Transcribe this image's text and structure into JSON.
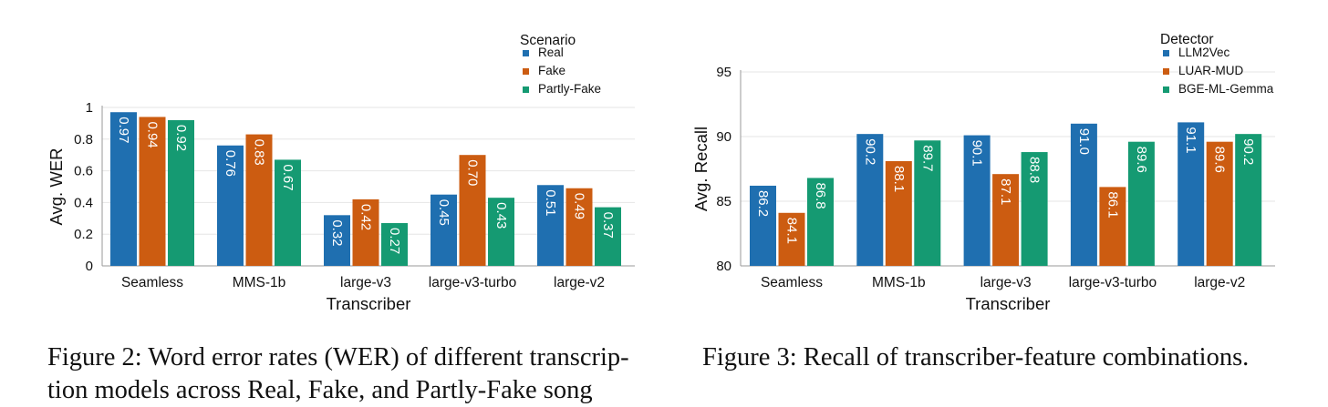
{
  "colors": {
    "blue": "#1f6fb0",
    "orange": "#cc5c11",
    "green": "#159a72"
  },
  "chart_data": [
    {
      "type": "bar",
      "categories": [
        "Seamless",
        "MMS-1b",
        "large-v3",
        "large-v3-turbo",
        "large-v2"
      ],
      "series": [
        {
          "name": "Real",
          "values": [
            0.97,
            0.76,
            0.32,
            0.45,
            0.51
          ],
          "labels": [
            "0.97",
            "0.76",
            "0.32",
            "0.45",
            "0.51"
          ],
          "color": "#1f6fb0"
        },
        {
          "name": "Fake",
          "values": [
            0.94,
            0.83,
            0.42,
            0.7,
            0.49
          ],
          "labels": [
            "0.94",
            "0.83",
            "0.42",
            "0.70",
            "0.49"
          ],
          "color": "#cc5c11"
        },
        {
          "name": "Partly-Fake",
          "values": [
            0.92,
            0.67,
            0.27,
            0.43,
            0.37
          ],
          "labels": [
            "0.92",
            "0.67",
            "0.27",
            "0.43",
            "0.37"
          ],
          "color": "#159a72"
        }
      ],
      "xlabel": "Transcriber",
      "ylabel": "Avg. WER",
      "ylim": [
        0,
        1
      ],
      "yticks": [
        "0",
        "0.2",
        "0.4",
        "0.6",
        "0.8",
        "1"
      ],
      "legend_title": "Scenario",
      "legend_position": "top-right",
      "grid": true
    },
    {
      "type": "bar",
      "categories": [
        "Seamless",
        "MMS-1b",
        "large-v3",
        "large-v3-turbo",
        "large-v2"
      ],
      "series": [
        {
          "name": "LLM2Vec",
          "values": [
            86.2,
            90.2,
            90.1,
            91.0,
            91.1
          ],
          "labels": [
            "86.2",
            "90.2",
            "90.1",
            "91.0",
            "91.1"
          ],
          "color": "#1f6fb0"
        },
        {
          "name": "LUAR-MUD",
          "values": [
            84.1,
            88.1,
            87.1,
            86.1,
            89.6
          ],
          "labels": [
            "84.1",
            "88.1",
            "87.1",
            "86.1",
            "89.6"
          ],
          "color": "#cc5c11"
        },
        {
          "name": "BGE-ML-Gemma",
          "values": [
            86.8,
            89.7,
            88.8,
            89.6,
            90.2
          ],
          "labels": [
            "86.8",
            "89.7",
            "88.8",
            "89.6",
            "90.2"
          ],
          "color": "#159a72"
        }
      ],
      "xlabel": "Transcriber",
      "ylabel": "Avg. Recall",
      "ylim": [
        80,
        95
      ],
      "yticks": [
        "80",
        "85",
        "90",
        "95"
      ],
      "legend_title": "Detector",
      "legend_position": "top-right",
      "grid": true
    }
  ],
  "captions": {
    "fig2_line1": "Figure 2: Word error rates (WER) of different transcrip-",
    "fig2_line2": "tion models across Real, Fake, and Partly-Fake song",
    "fig3": "Figure 3: Recall of transcriber-feature combinations."
  }
}
